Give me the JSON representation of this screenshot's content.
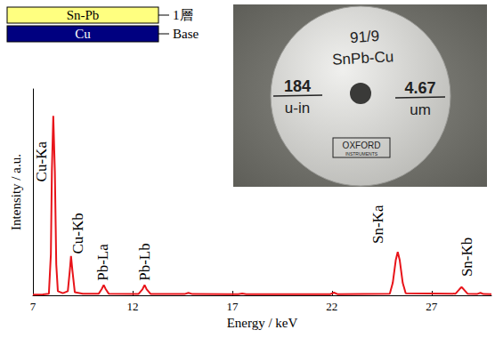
{
  "chart_data": {
    "type": "line",
    "x_label": "Energy / keV",
    "y_label": "Intensity / a.u.",
    "xlim": [
      7,
      30
    ],
    "xticks": [
      7,
      12,
      17,
      22,
      27
    ],
    "ylim": [
      0,
      100
    ],
    "grid": false,
    "tick_labels": "x",
    "color": "#e8141a",
    "x": [
      7.0,
      7.5,
      7.8,
      7.9,
      7.95,
      8.02,
      8.1,
      8.17,
      8.25,
      8.5,
      8.75,
      8.85,
      8.91,
      8.98,
      9.1,
      9.5,
      10.3,
      10.45,
      10.55,
      10.65,
      10.8,
      12.3,
      12.5,
      12.6,
      12.7,
      12.9,
      14.6,
      14.8,
      15.0,
      17.3,
      17.5,
      17.7,
      21.9,
      22.1,
      22.3,
      24.9,
      25.05,
      25.2,
      25.3,
      25.4,
      25.55,
      25.7,
      28.2,
      28.4,
      28.5,
      28.6,
      28.8,
      29.3,
      29.45,
      29.6,
      30.0
    ],
    "values": [
      0.3,
      0.4,
      0.8,
      20,
      60,
      87,
      60,
      15,
      2,
      1,
      2,
      12,
      19,
      12,
      1.5,
      0.8,
      0.8,
      3,
      5,
      3,
      0.8,
      0.7,
      3,
      5,
      3,
      0.7,
      0.6,
      1.2,
      0.6,
      0.5,
      0.9,
      0.5,
      0.5,
      1.3,
      0.5,
      0.8,
      6,
      17,
      21,
      17,
      6,
      1,
      0.8,
      3,
      4,
      3,
      0.8,
      0.7,
      1.2,
      0.6,
      0.5
    ],
    "annotations": [
      {
        "text": "Cu-Ka",
        "x": 7.44,
        "y": 55
      },
      {
        "text": "Cu-Kb",
        "x": 9.26,
        "y": 20
      },
      {
        "text": "Pb-La",
        "x": 10.5,
        "y": 7
      },
      {
        "text": "Pb-Lb",
        "x": 12.59,
        "y": 7
      },
      {
        "text": "Sn-Ka",
        "x": 24.3,
        "y": 25
      },
      {
        "text": "Sn-Kb",
        "x": 28.77,
        "y": 9
      }
    ]
  },
  "layer_diagram": {
    "layers": [
      {
        "text": "Sn-Pb",
        "label": "1層",
        "color": "#ffff80"
      },
      {
        "text": "Cu",
        "label": "Base",
        "color": "#000080"
      }
    ]
  },
  "photo": {
    "composition": "91/9",
    "material": "SnPb-Cu",
    "thickness": [
      {
        "value": 184,
        "unit": "u-in"
      },
      {
        "value": 4.67,
        "unit": "um"
      }
    ],
    "maker": [
      "OXFORD",
      "INSTRUMENTS"
    ]
  }
}
